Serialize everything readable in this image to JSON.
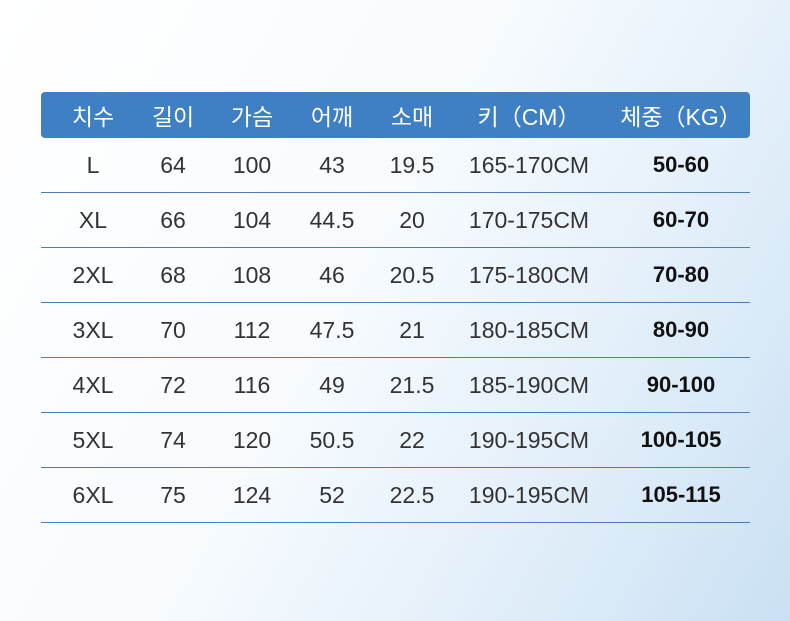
{
  "colors": {
    "header_bg": "#3f7fc4",
    "divider": "#4a7fb5"
  },
  "headers": [
    "치수",
    "길이",
    "가슴",
    "어깨",
    "소매",
    "키（CM）",
    "체중（KG）"
  ],
  "rows": [
    [
      "L",
      "64",
      "100",
      "43",
      "19.5",
      "165-170CM",
      "50-60"
    ],
    [
      "XL",
      "66",
      "104",
      "44.5",
      "20",
      "170-175CM",
      "60-70"
    ],
    [
      "2XL",
      "68",
      "108",
      "46",
      "20.5",
      "175-180CM",
      "70-80"
    ],
    [
      "3XL",
      "70",
      "112",
      "47.5",
      "21",
      "180-185CM",
      "80-90"
    ],
    [
      "4XL",
      "72",
      "116",
      "49",
      "21.5",
      "185-190CM",
      "90-100"
    ],
    [
      "5XL",
      "74",
      "120",
      "50.5",
      "22",
      "190-195CM",
      "100-105"
    ],
    [
      "6XL",
      "75",
      "124",
      "52",
      "22.5",
      "190-195CM",
      "105-115"
    ]
  ]
}
